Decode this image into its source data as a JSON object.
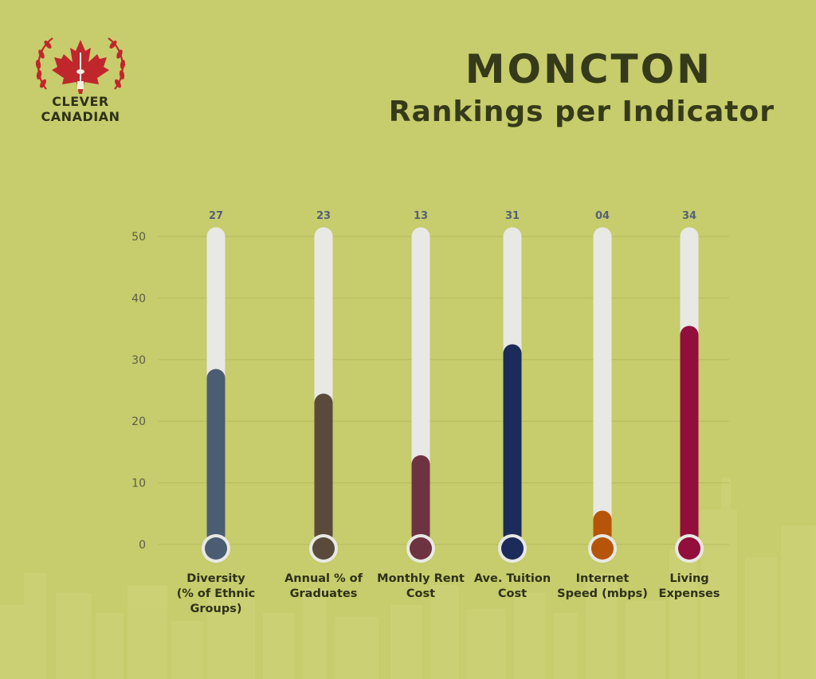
{
  "brand": {
    "line1": "CLEVER",
    "line2": "CANADIAN",
    "accent_color": "#c0272d"
  },
  "header": {
    "title": "MONCTON",
    "subtitle": "Rankings per Indicator"
  },
  "chart_data": {
    "type": "bar",
    "style": "thermometer",
    "title": "MONCTON",
    "subtitle": "Rankings per Indicator",
    "categories": [
      "Diversity\n(% of Ethnic Groups)",
      "Annual % of\nGraduates",
      "Monthly Rent\nCost",
      "Ave. Tuition\nCost",
      "Internet\nSpeed (mbps)",
      "Living\nExpenses"
    ],
    "values": [
      27,
      23,
      13,
      31,
      4,
      34
    ],
    "value_labels": [
      "27",
      "23",
      "13",
      "31",
      "04",
      "34"
    ],
    "colors": [
      "#4b5d72",
      "#5a4a3b",
      "#6e3341",
      "#1c2b59",
      "#b65509",
      "#920e3d"
    ],
    "track_color": "#e8e8e4",
    "ylim": [
      0,
      50
    ],
    "yticks": [
      "0",
      "10",
      "20",
      "30",
      "40",
      "50"
    ],
    "grid": true,
    "xlabel": "",
    "ylabel": ""
  }
}
